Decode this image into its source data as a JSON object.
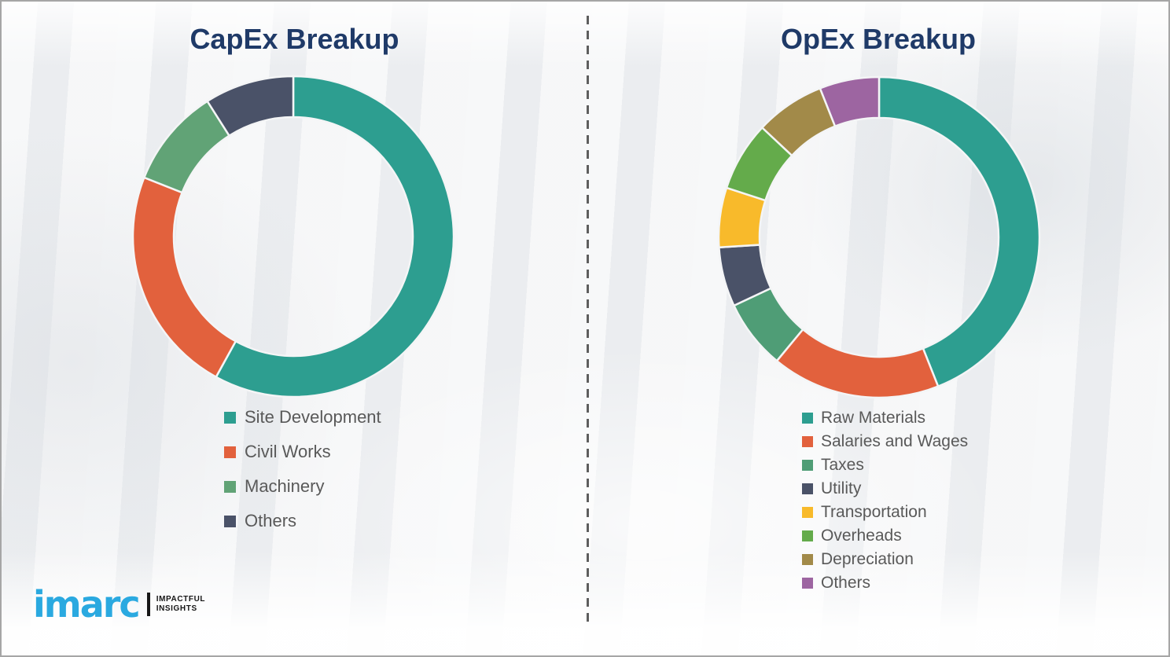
{
  "page": {
    "background_color": "#f1f2f4",
    "border_color": "#a6a6a6",
    "divider_color": "#5e5e5e",
    "title_color": "#1f3a68",
    "legend_text_color": "#595959"
  },
  "chart_data": [
    {
      "id": "capex",
      "type": "pie",
      "variant": "donut",
      "title": "CapEx Breakup",
      "units": "percent",
      "legend_position": "below-left",
      "segments": [
        {
          "label": "Site Development",
          "value": 58,
          "color": "#2d9e90"
        },
        {
          "label": "Civil Works",
          "value": 23,
          "color": "#e2613d"
        },
        {
          "label": "Machinery",
          "value": 10,
          "color": "#61a376"
        },
        {
          "label": "Others",
          "value": 9,
          "color": "#4a5268"
        }
      ]
    },
    {
      "id": "opex",
      "type": "pie",
      "variant": "donut",
      "title": "OpEx Breakup",
      "units": "percent",
      "legend_position": "below-left",
      "segments": [
        {
          "label": "Raw Materials",
          "value": 44,
          "color": "#2d9e90"
        },
        {
          "label": "Salaries and Wages",
          "value": 17,
          "color": "#e2613d"
        },
        {
          "label": "Taxes",
          "value": 7,
          "color": "#4f9d76"
        },
        {
          "label": "Utility",
          "value": 6,
          "color": "#4a5268"
        },
        {
          "label": "Transportation",
          "value": 6,
          "color": "#f8ba2b"
        },
        {
          "label": "Overheads",
          "value": 7,
          "color": "#64ab4b"
        },
        {
          "label": "Depreciation",
          "value": 7,
          "color": "#a28a49"
        },
        {
          "label": "Others",
          "value": 6,
          "color": "#9d65a1"
        }
      ]
    }
  ],
  "branding": {
    "logo_text": "imarc",
    "tagline_line1": "IMPACTFUL",
    "tagline_line2": "INSIGHTS",
    "logo_color": "#2aa9e0"
  }
}
